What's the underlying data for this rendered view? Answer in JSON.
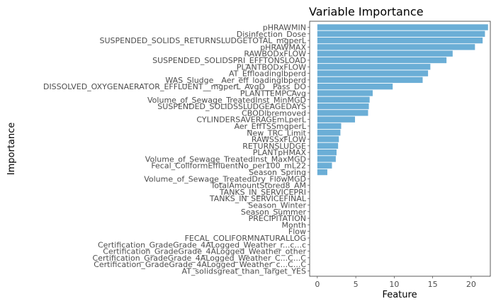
{
  "chart_data": {
    "type": "bar",
    "orientation": "horizontal",
    "title": "Variable Importance",
    "xlabel": "Feature",
    "ylabel": "Importance",
    "xlim": [
      -1.0,
      22.5
    ],
    "xticks": [
      0,
      5,
      10,
      15,
      20
    ],
    "grid": false,
    "bar_color": "#6baed6",
    "categories": [
      "pHRAWMIN",
      "Disinfection_Dose",
      "SUSPENDED_SOLIDS_RETURNSLUDGETOTAL_mgperL",
      "pHRAWMAX",
      "RAWBODxFLOW",
      "SUSPENDED_SOLIDSPRI_EFFTONSLOAD",
      "PLANTBODxFLOW",
      "AT_Effloadinglbperd",
      "WAS_Sludge__Aer_eff_loadinglbperd",
      "DISSOLVED_OXYGENAERATOR_EFFLUENT__mgperL_AvgD__Pass_DO",
      "PLANTTEMPCAvg",
      "Volume_of_Sewage_TreatedInst_MinMGD",
      "SUSPENDED_SOLIDSSLUDGEAGEDAYS",
      "CBODlbremoved",
      "CYLINDERSAVERAGEmLperL",
      "Aer_EffTSSmgperL",
      "New_TRC_Limit",
      "RAWSSxFLOW",
      "RETURNSLUDGE",
      "PLANTpHMAX",
      "Volume_of_Sewage_TreatedInst_MaxMGD",
      "Fecal_ColiformEffluentNo_per100_mL22",
      "Season_Spring",
      "Volume_of_Sewage_TreatedDry_FlowMGD",
      "TotalAmountStored8_AM",
      "TANKS_IN_SERVICEPRI",
      "TANKS_IN_SERVICEFINAL",
      "Season_Winter",
      "Season_Summer",
      "PRECIPITATION",
      "Month",
      "Flow",
      "FECAL_COLIFORMNATURALLOG",
      "Certification_GradeGrade_4ALogged_Weather_r...c...c",
      "Certification_GradeGrade_4ALogged_Weather_other",
      "Certification_GradeGrade_4ALogged_Weather_C...C...C",
      "Certification_GradeGrade_4ALogged_Weather_c...C...C",
      "AT_solidsgreat_than_Target_YES"
    ],
    "values": [
      22.2,
      21.8,
      21.5,
      20.5,
      17.6,
      16.8,
      14.7,
      14.4,
      13.7,
      9.8,
      7.2,
      6.8,
      6.7,
      6.6,
      4.9,
      3.1,
      3.0,
      2.8,
      2.7,
      2.5,
      2.4,
      1.9,
      1.3,
      0,
      0,
      0,
      0,
      0,
      0,
      0,
      0,
      0,
      0,
      0,
      0,
      0,
      0,
      0
    ]
  }
}
